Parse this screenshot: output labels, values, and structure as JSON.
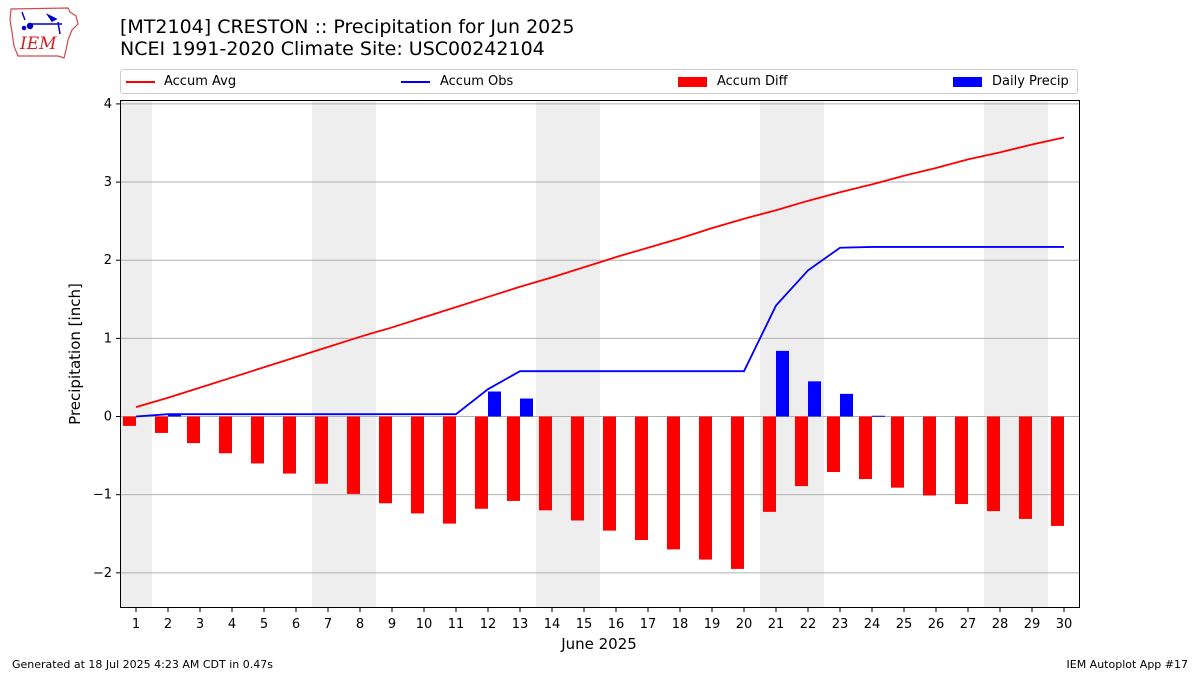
{
  "header": {
    "logo_text": "IEM",
    "title": "[MT2104] CRESTON :: Precipitation for Jun 2025",
    "subtitle": "NCEI 1991-2020 Climate Site: USC00242104"
  },
  "legend": {
    "placement": "top",
    "items": [
      {
        "label": "Accum Avg",
        "kind": "line",
        "color": "#ff0000"
      },
      {
        "label": "Accum Obs",
        "kind": "line",
        "color": "#0000ff"
      },
      {
        "label": "Accum Diff",
        "kind": "bar",
        "color": "#ff0000"
      },
      {
        "label": "Daily Precip",
        "kind": "bar",
        "color": "#0000ff"
      }
    ]
  },
  "chart_data": {
    "type": "bar",
    "title": "[MT2104] CRESTON :: Precipitation for Jun 2025",
    "subtitle": "NCEI 1991-2020 Climate Site: USC00242104",
    "xlabel": "June 2025",
    "ylabel": "Precipitation [inch]",
    "ylim": [
      -2.45,
      4.05
    ],
    "yticks": [
      4,
      3,
      2,
      1,
      0,
      -1,
      -2
    ],
    "ytick_labels": [
      "4",
      "3",
      "2",
      "1",
      "0",
      "−1",
      "−2"
    ],
    "grid": "horizontal",
    "weekend_shading_days": [
      1,
      7,
      8,
      14,
      15,
      21,
      22,
      28,
      29
    ],
    "categories": [
      "1",
      "2",
      "3",
      "4",
      "5",
      "6",
      "7",
      "8",
      "9",
      "10",
      "11",
      "12",
      "13",
      "14",
      "15",
      "16",
      "17",
      "18",
      "19",
      "20",
      "21",
      "22",
      "23",
      "24",
      "25",
      "26",
      "27",
      "28",
      "29",
      "30"
    ],
    "series": [
      {
        "name": "Accum Avg",
        "type": "line",
        "color": "#ff0000",
        "values": [
          0.12,
          0.24,
          0.37,
          0.5,
          0.63,
          0.76,
          0.89,
          1.02,
          1.14,
          1.27,
          1.4,
          1.53,
          1.66,
          1.78,
          1.91,
          2.04,
          2.16,
          2.28,
          2.41,
          2.53,
          2.64,
          2.76,
          2.87,
          2.97,
          3.08,
          3.18,
          3.29,
          3.38,
          3.48,
          3.57
        ]
      },
      {
        "name": "Accum Obs",
        "type": "line",
        "color": "#0000ff",
        "values": [
          0.0,
          0.03,
          0.03,
          0.03,
          0.03,
          0.03,
          0.03,
          0.03,
          0.03,
          0.03,
          0.03,
          0.35,
          0.58,
          0.58,
          0.58,
          0.58,
          0.58,
          0.58,
          0.58,
          0.58,
          1.42,
          1.87,
          2.16,
          2.17,
          2.17,
          2.17,
          2.17,
          2.17,
          2.17,
          2.17
        ]
      },
      {
        "name": "Accum Diff",
        "type": "bar",
        "color": "#ff0000",
        "values": [
          -0.12,
          -0.21,
          -0.34,
          -0.47,
          -0.6,
          -0.73,
          -0.86,
          -0.99,
          -1.11,
          -1.24,
          -1.37,
          -1.18,
          -1.08,
          -1.2,
          -1.33,
          -1.46,
          -1.58,
          -1.7,
          -1.83,
          -1.95,
          -1.22,
          -0.89,
          -0.71,
          -0.8,
          -0.91,
          -1.01,
          -1.12,
          -1.21,
          -1.31,
          -1.4
        ]
      },
      {
        "name": "Daily Precip",
        "type": "bar",
        "color": "#0000ff",
        "values": [
          0.0,
          0.03,
          0.0,
          0.0,
          0.0,
          0.0,
          0.0,
          0.0,
          0.0,
          0.0,
          0.0,
          0.32,
          0.23,
          0.0,
          0.0,
          0.0,
          0.0,
          0.0,
          0.0,
          0.0,
          0.84,
          0.45,
          0.29,
          0.01,
          0.0,
          0.0,
          0.0,
          0.0,
          0.0,
          0.0
        ]
      }
    ]
  },
  "footer": {
    "generated": "Generated at 18 Jul 2025 4:23 AM CDT in 0.47s",
    "app": "IEM Autoplot App #17"
  }
}
